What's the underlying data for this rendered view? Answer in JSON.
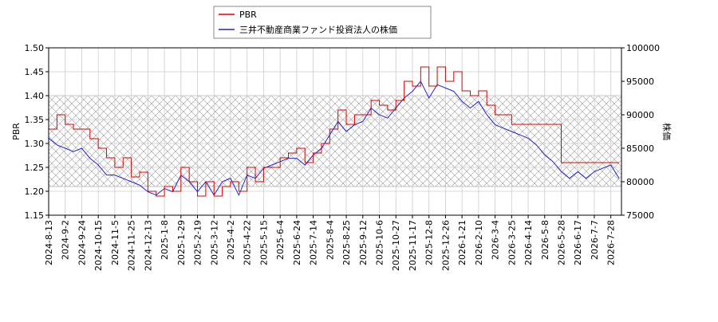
{
  "chart_data": {
    "type": "line",
    "ylabel": "PBR",
    "y2label": "株価",
    "x": [
      0,
      7,
      14,
      21,
      28,
      35,
      42,
      49,
      56,
      63,
      70,
      77,
      84,
      91,
      98,
      105,
      112,
      119,
      126,
      133,
      140,
      147,
      154,
      161,
      168,
      175,
      182,
      189,
      196,
      203,
      210,
      217,
      224,
      231,
      238,
      245,
      252,
      259,
      266,
      273,
      280,
      287,
      294,
      301,
      308,
      315,
      322,
      329,
      336,
      343,
      350,
      357,
      364,
      371,
      378,
      385,
      392,
      399,
      406,
      413,
      420,
      427,
      434,
      441,
      448,
      455,
      462,
      469,
      476,
      483
    ],
    "series": [
      {
        "name": "PBR",
        "color": "#dd0000",
        "step": true,
        "values": [
          1.33,
          1.36,
          1.34,
          1.33,
          1.33,
          1.31,
          1.29,
          1.27,
          1.25,
          1.27,
          1.23,
          1.24,
          1.2,
          1.19,
          1.21,
          1.2,
          1.25,
          1.22,
          1.19,
          1.22,
          1.19,
          1.21,
          1.22,
          1.2,
          1.25,
          1.22,
          1.25,
          1.25,
          1.27,
          1.28,
          1.29,
          1.26,
          1.28,
          1.3,
          1.33,
          1.37,
          1.34,
          1.36,
          1.36,
          1.39,
          1.38,
          1.37,
          1.39,
          1.43,
          1.42,
          1.46,
          1.42,
          1.46,
          1.43,
          1.45,
          1.41,
          1.4,
          1.41,
          1.38,
          1.36,
          1.36,
          1.34,
          1.34,
          1.34,
          1.34,
          1.34,
          1.34,
          1.26,
          1.26,
          1.26,
          1.26,
          1.26,
          1.26,
          1.26,
          1.26
        ]
      },
      {
        "name": "三井不動産商業ファンド投資法人の株価",
        "color": "#2222cc",
        "axis": "y2",
        "values": [
          86500,
          85500,
          85000,
          84500,
          85000,
          83500,
          82500,
          81000,
          81000,
          80500,
          80000,
          79500,
          78500,
          78000,
          79000,
          78500,
          81000,
          80000,
          78500,
          80000,
          78000,
          80000,
          80500,
          78000,
          81000,
          80500,
          82000,
          82500,
          83000,
          83500,
          83500,
          82500,
          84000,
          85000,
          87000,
          89000,
          87500,
          88500,
          89000,
          91000,
          90000,
          89500,
          91000,
          92500,
          93500,
          95000,
          92500,
          94500,
          94000,
          93500,
          92000,
          91000,
          92000,
          90000,
          88500,
          88000,
          87500,
          87000,
          86500,
          85500,
          84000,
          83000,
          81500,
          80500,
          81500,
          80500,
          81500,
          82000,
          82500,
          80500
        ]
      }
    ],
    "hatch_range": [
      1.21,
      1.4
    ],
    "xlim": [
      0,
      485
    ],
    "xticks": [
      {
        "value": 0,
        "label": "2024-8-13"
      },
      {
        "value": 14,
        "label": "2024-9-2"
      },
      {
        "value": 28,
        "label": "2024-9-24"
      },
      {
        "value": 42,
        "label": "2024-10-15"
      },
      {
        "value": 56,
        "label": "2024-11-5"
      },
      {
        "value": 70,
        "label": "2024-11-25"
      },
      {
        "value": 84,
        "label": "2024-12-13"
      },
      {
        "value": 98,
        "label": "2025-1-8"
      },
      {
        "value": 112,
        "label": "2025-1-29"
      },
      {
        "value": 126,
        "label": "2025-2-19"
      },
      {
        "value": 140,
        "label": "2025-3-12"
      },
      {
        "value": 154,
        "label": "2025-4-2"
      },
      {
        "value": 168,
        "label": "2025-4-22"
      },
      {
        "value": 182,
        "label": "2025-5-15"
      },
      {
        "value": 196,
        "label": "2025-6-4"
      },
      {
        "value": 210,
        "label": "2025-6-24"
      },
      {
        "value": 224,
        "label": "2025-7-14"
      },
      {
        "value": 238,
        "label": "2025-8-4"
      },
      {
        "value": 252,
        "label": "2025-8-25"
      },
      {
        "value": 266,
        "label": "2025-9-12"
      },
      {
        "value": 280,
        "label": "2025-10-6"
      },
      {
        "value": 294,
        "label": "2025-10-27"
      },
      {
        "value": 308,
        "label": "2025-11-17"
      },
      {
        "value": 322,
        "label": "2025-12-8"
      },
      {
        "value": 336,
        "label": "2025-12-26"
      },
      {
        "value": 350,
        "label": "2026-1-21"
      },
      {
        "value": 364,
        "label": "2026-2-10"
      },
      {
        "value": 378,
        "label": "2026-3-4"
      },
      {
        "value": 392,
        "label": "2026-3-25"
      },
      {
        "value": 406,
        "label": "2026-4-14"
      },
      {
        "value": 420,
        "label": "2026-5-8"
      },
      {
        "value": 434,
        "label": "2026-5-28"
      },
      {
        "value": 448,
        "label": "2026-6-17"
      },
      {
        "value": 462,
        "label": "2026-7-7"
      },
      {
        "value": 476,
        "label": "2026-7-28"
      }
    ],
    "ylim": [
      1.15,
      1.5
    ],
    "yticks": [
      {
        "value": 1.15,
        "label": "1.15"
      },
      {
        "value": 1.2,
        "label": "1.20"
      },
      {
        "value": 1.25,
        "label": "1.25"
      },
      {
        "value": 1.3,
        "label": "1.30"
      },
      {
        "value": 1.35,
        "label": "1.35"
      },
      {
        "value": 1.4,
        "label": "1.40"
      },
      {
        "value": 1.45,
        "label": "1.45"
      },
      {
        "value": 1.5,
        "label": "1.50"
      }
    ],
    "y2lim": [
      75000,
      100000
    ],
    "y2ticks": [
      75000,
      80000,
      85000,
      90000,
      95000,
      100000
    ],
    "grid": true,
    "legend": "top"
  }
}
